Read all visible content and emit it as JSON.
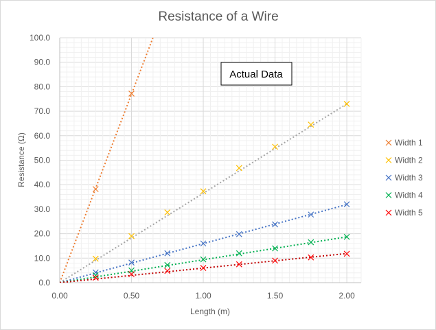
{
  "chart_data": {
    "type": "scatter",
    "title": "Resistance of a Wire",
    "xlabel": "Length (m)",
    "ylabel": "Resistance (Ω)",
    "xlim": [
      0,
      2.1
    ],
    "ylim": [
      0,
      100
    ],
    "xticks": [
      "0.00",
      "0.50",
      "1.00",
      "1.50",
      "2.00"
    ],
    "yticks": [
      "0.0",
      "10.0",
      "20.0",
      "30.0",
      "40.0",
      "50.0",
      "60.0",
      "70.0",
      "80.0",
      "90.0",
      "100.0"
    ],
    "grid": true,
    "legend_position": "right",
    "annotation": "Actual Data",
    "series": [
      {
        "name": "Width 1",
        "color": "#ED7D31",
        "trend_color": "#ED7D31",
        "x": [
          0.25,
          0.5
        ],
        "y": [
          38.2,
          77.2
        ],
        "trend_slope": 154
      },
      {
        "name": "Width 2",
        "color": "#FFC000",
        "trend_color": "#A5A5A5",
        "x": [
          0.25,
          0.5,
          0.75,
          1.0,
          1.25,
          1.5,
          1.75,
          2.0
        ],
        "y": [
          9.8,
          19.0,
          28.7,
          37.3,
          46.8,
          55.5,
          64.5,
          73.0
        ],
        "trend_slope": 36.5
      },
      {
        "name": "Width 3",
        "color": "#4472C4",
        "trend_color": "#4472C4",
        "x": [
          0.25,
          0.5,
          0.75,
          1.0,
          1.25,
          1.5,
          1.75,
          2.0
        ],
        "y": [
          4.2,
          8.2,
          12.0,
          16.0,
          19.8,
          23.8,
          27.8,
          32.0
        ],
        "trend_slope": 15.95
      },
      {
        "name": "Width 4",
        "color": "#00B050",
        "trend_color": "#00B050",
        "x": [
          0.25,
          0.5,
          0.75,
          1.0,
          1.25,
          1.5,
          1.75,
          2.0
        ],
        "y": [
          3.0,
          5.0,
          7.2,
          9.5,
          12.0,
          14.0,
          16.5,
          18.7
        ],
        "trend_slope": 9.35
      },
      {
        "name": "Width 5",
        "color": "#FF0000",
        "trend_color": "#C00000",
        "x": [
          0.25,
          0.5,
          0.75,
          1.0,
          1.25,
          1.5,
          1.75,
          2.0
        ],
        "y": [
          2.0,
          3.5,
          4.8,
          6.0,
          7.5,
          9.0,
          10.3,
          11.8
        ],
        "trend_slope": 5.95
      }
    ]
  }
}
